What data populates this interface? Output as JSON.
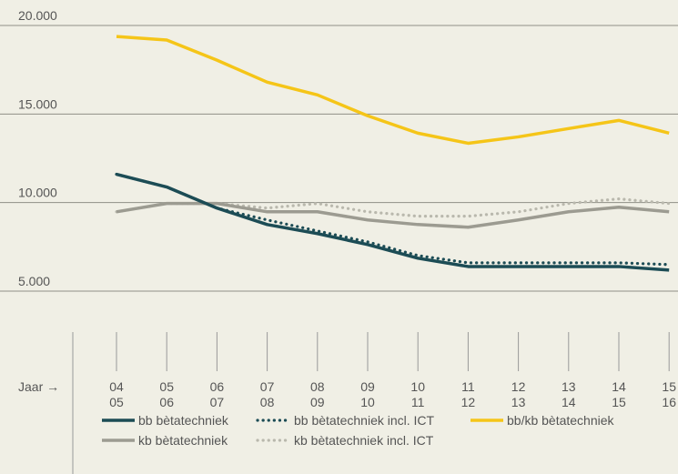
{
  "chart_data": {
    "type": "line",
    "x_label": "Jaar →",
    "categories": [
      [
        "04",
        "05"
      ],
      [
        "05",
        "06"
      ],
      [
        "06",
        "07"
      ],
      [
        "07",
        "08"
      ],
      [
        "08",
        "09"
      ],
      [
        "09",
        "10"
      ],
      [
        "10",
        "11"
      ],
      [
        "11",
        "12"
      ],
      [
        "12",
        "13"
      ],
      [
        "13",
        "14"
      ],
      [
        "14",
        "15"
      ],
      [
        "15",
        "16"
      ]
    ],
    "ylim": [
      5000,
      20000
    ],
    "yticks": [
      {
        "value": 5000,
        "label": "5.000"
      },
      {
        "value": 10000,
        "label": "10.000"
      },
      {
        "value": 15000,
        "label": "15.000"
      },
      {
        "value": 20000,
        "label": "20.000"
      }
    ],
    "grid": true,
    "series": [
      {
        "name": "kb bètatechniek incl. ICT",
        "color": "#b9b8ad",
        "style": "dotted",
        "values": [
          9480,
          9950,
          9950,
          9690,
          9950,
          9480,
          9230,
          9230,
          9480,
          9950,
          10210,
          9950
        ]
      },
      {
        "name": "kb bètatechniek",
        "color": "#9c9b91",
        "style": "solid",
        "values": [
          9480,
          9950,
          9950,
          9480,
          9480,
          9020,
          8760,
          8610,
          9020,
          9480,
          9740,
          9480
        ]
      },
      {
        "name": "bb bètatechniek incl. ICT",
        "color": "#1c4c55",
        "style": "dotted",
        "values": [
          11600,
          10880,
          9690,
          9020,
          8400,
          7780,
          7010,
          6600,
          6600,
          6600,
          6600,
          6500
        ]
      },
      {
        "name": "bb bètatechniek",
        "color": "#1c4c55",
        "style": "solid",
        "values": [
          11600,
          10880,
          9690,
          8760,
          8250,
          7630,
          6860,
          6390,
          6390,
          6390,
          6390,
          6190
        ]
      },
      {
        "name": "bb/kb bètatechniek",
        "color": "#f5c518",
        "style": "solid",
        "values": [
          19380,
          19180,
          18040,
          16800,
          16080,
          14900,
          13920,
          13350,
          13710,
          14180,
          14640,
          13920
        ]
      }
    ]
  }
}
